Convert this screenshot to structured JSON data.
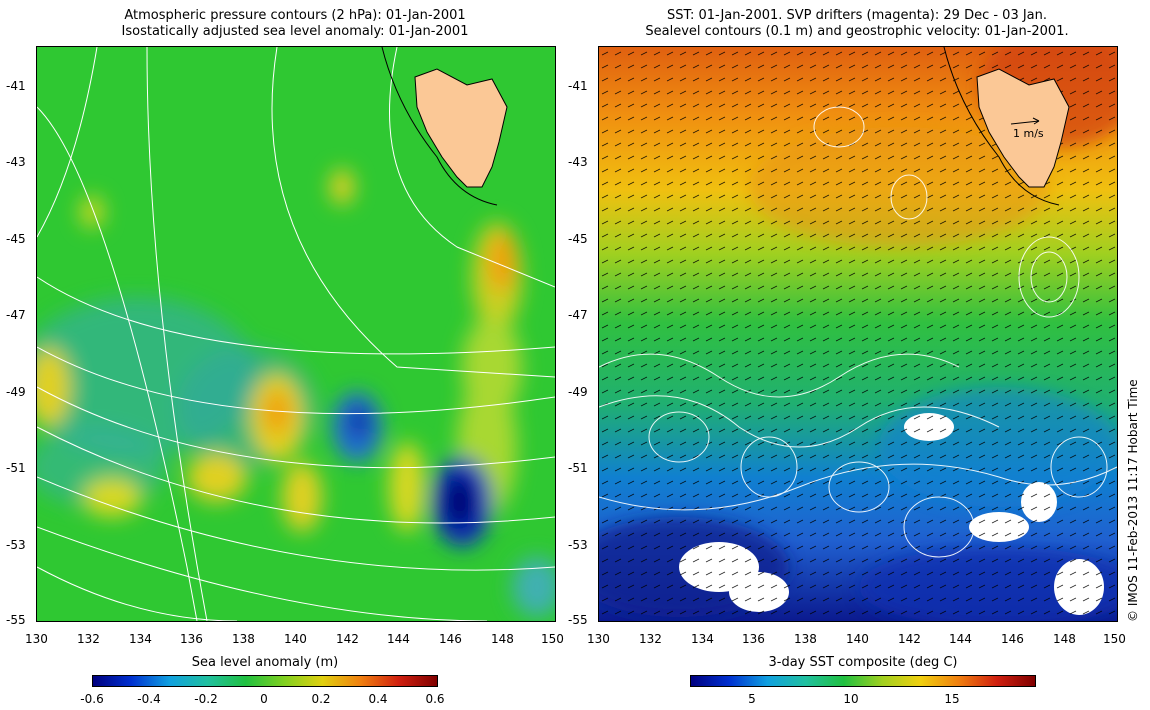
{
  "left_panel": {
    "title_line1": "Atmospheric pressure contours (2 hPa): 01-Jan-2001",
    "title_line2": "Isostatically adjusted sea level anomaly: 01-Jan-2001",
    "colorbar_title": "Sea level anomaly (m)",
    "colorbar_ticks": [
      "-0.6",
      "-0.4",
      "-0.2",
      "0",
      "0.2",
      "0.4",
      "0.6"
    ]
  },
  "right_panel": {
    "title_line1": "SST: 01-Jan-2001. SVP drifters (magenta): 29 Dec - 03 Jan.",
    "title_line2": "Sealevel contours (0.1 m) and geostrophic velocity: 01-Jan-2001.",
    "colorbar_title": "3-day SST composite (deg C)",
    "colorbar_ticks": [
      "5",
      "10",
      "15"
    ],
    "velocity_scale_label": "1 m/s"
  },
  "axes": {
    "x_ticks": [
      "130",
      "132",
      "134",
      "136",
      "138",
      "140",
      "142",
      "144",
      "146",
      "148",
      "150"
    ],
    "y_ticks": [
      "-41",
      "-43",
      "-45",
      "-47",
      "-49",
      "-51",
      "-53",
      "-55"
    ]
  },
  "credit": "© IMOS 11-Feb-2013 11:17 Hobart Time",
  "colors": {
    "land": "#fbc896",
    "slaLow": "#00007f",
    "slaMid": "#22c040",
    "slaHigh": "#b30000",
    "sstCold": "#0b1a8f",
    "sstWarm": "#e06010"
  }
}
